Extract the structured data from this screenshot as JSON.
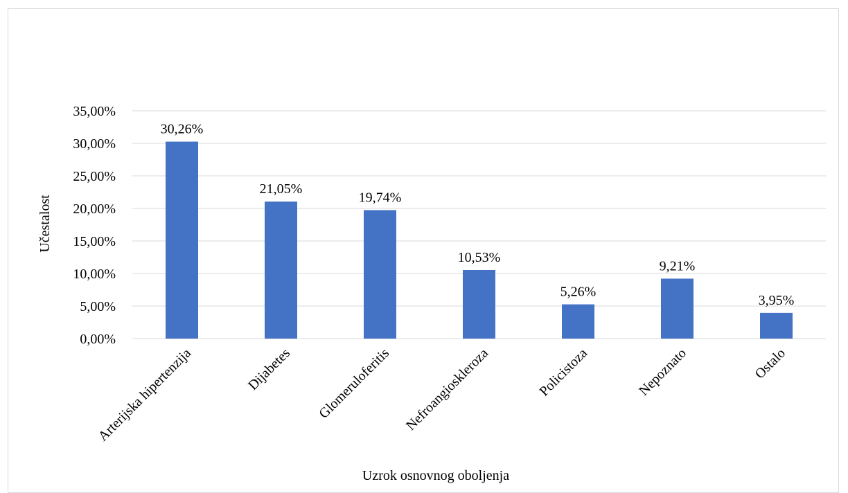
{
  "chart_data": {
    "type": "bar",
    "categories": [
      "Arterijska hipertenzija",
      "Dijabetes",
      "Glomeruloferitis",
      "Nefroangioskleroza",
      "Policistoza",
      "Nepoznato",
      "Ostalo"
    ],
    "values": [
      30.26,
      21.05,
      19.74,
      10.53,
      5.26,
      9.21,
      3.95
    ],
    "data_labels": [
      "30,26%",
      "21,05%",
      "19,74%",
      "10,53%",
      "5,26%",
      "9,21%",
      "3,95%"
    ],
    "title": "",
    "xlabel": "Uzrok osnovnog oboljenja",
    "ylabel": "Učestalost",
    "ylim": [
      0,
      35
    ],
    "yticks": [
      0,
      5,
      10,
      15,
      20,
      25,
      30,
      35
    ],
    "ytick_labels": [
      "0,00%",
      "5,00%",
      "10,00%",
      "15,00%",
      "20,00%",
      "25,00%",
      "30,00%",
      "35,00%"
    ],
    "grid": true,
    "legend": "none",
    "bar_color": "#4472c4",
    "grid_color": "#d9d9d9"
  }
}
